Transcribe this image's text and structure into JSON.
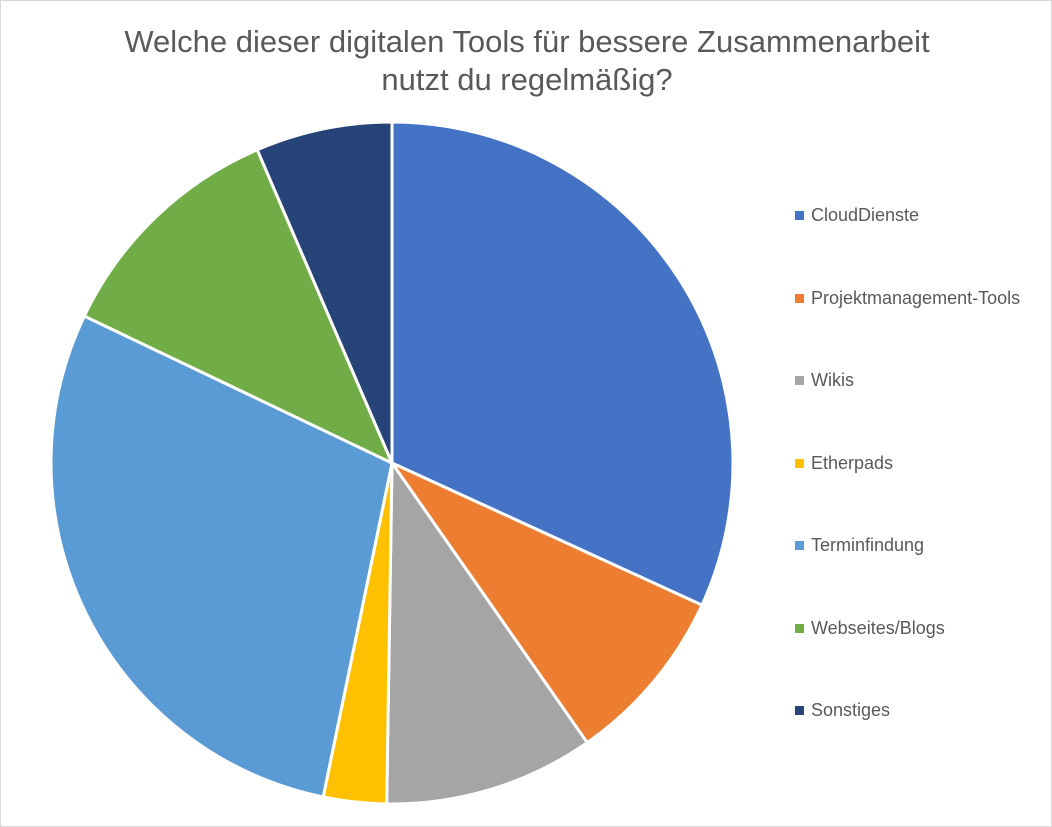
{
  "chart_data": {
    "type": "pie",
    "title_lines": [
      "Welche dieser digitalen Tools für bessere Zusammenarbeit",
      "nutzt du regelmäßig?"
    ],
    "categories": [
      "CloudDienste",
      "Projektmanagement-Tools",
      "Wikis",
      "Etherpads",
      "Terminfindung",
      "Webseites/Blogs",
      "Sonstiges"
    ],
    "values": [
      32,
      8.5,
      10,
      3,
      29,
      11.5,
      6.5
    ],
    "colors": [
      "#4472C4",
      "#ED7D31",
      "#A5A5A5",
      "#FFC000",
      "#5B9BD5",
      "#70AD47",
      "#264478"
    ],
    "start_angle": "12 o'clock",
    "direction": "clockwise",
    "legend_position": "right"
  }
}
